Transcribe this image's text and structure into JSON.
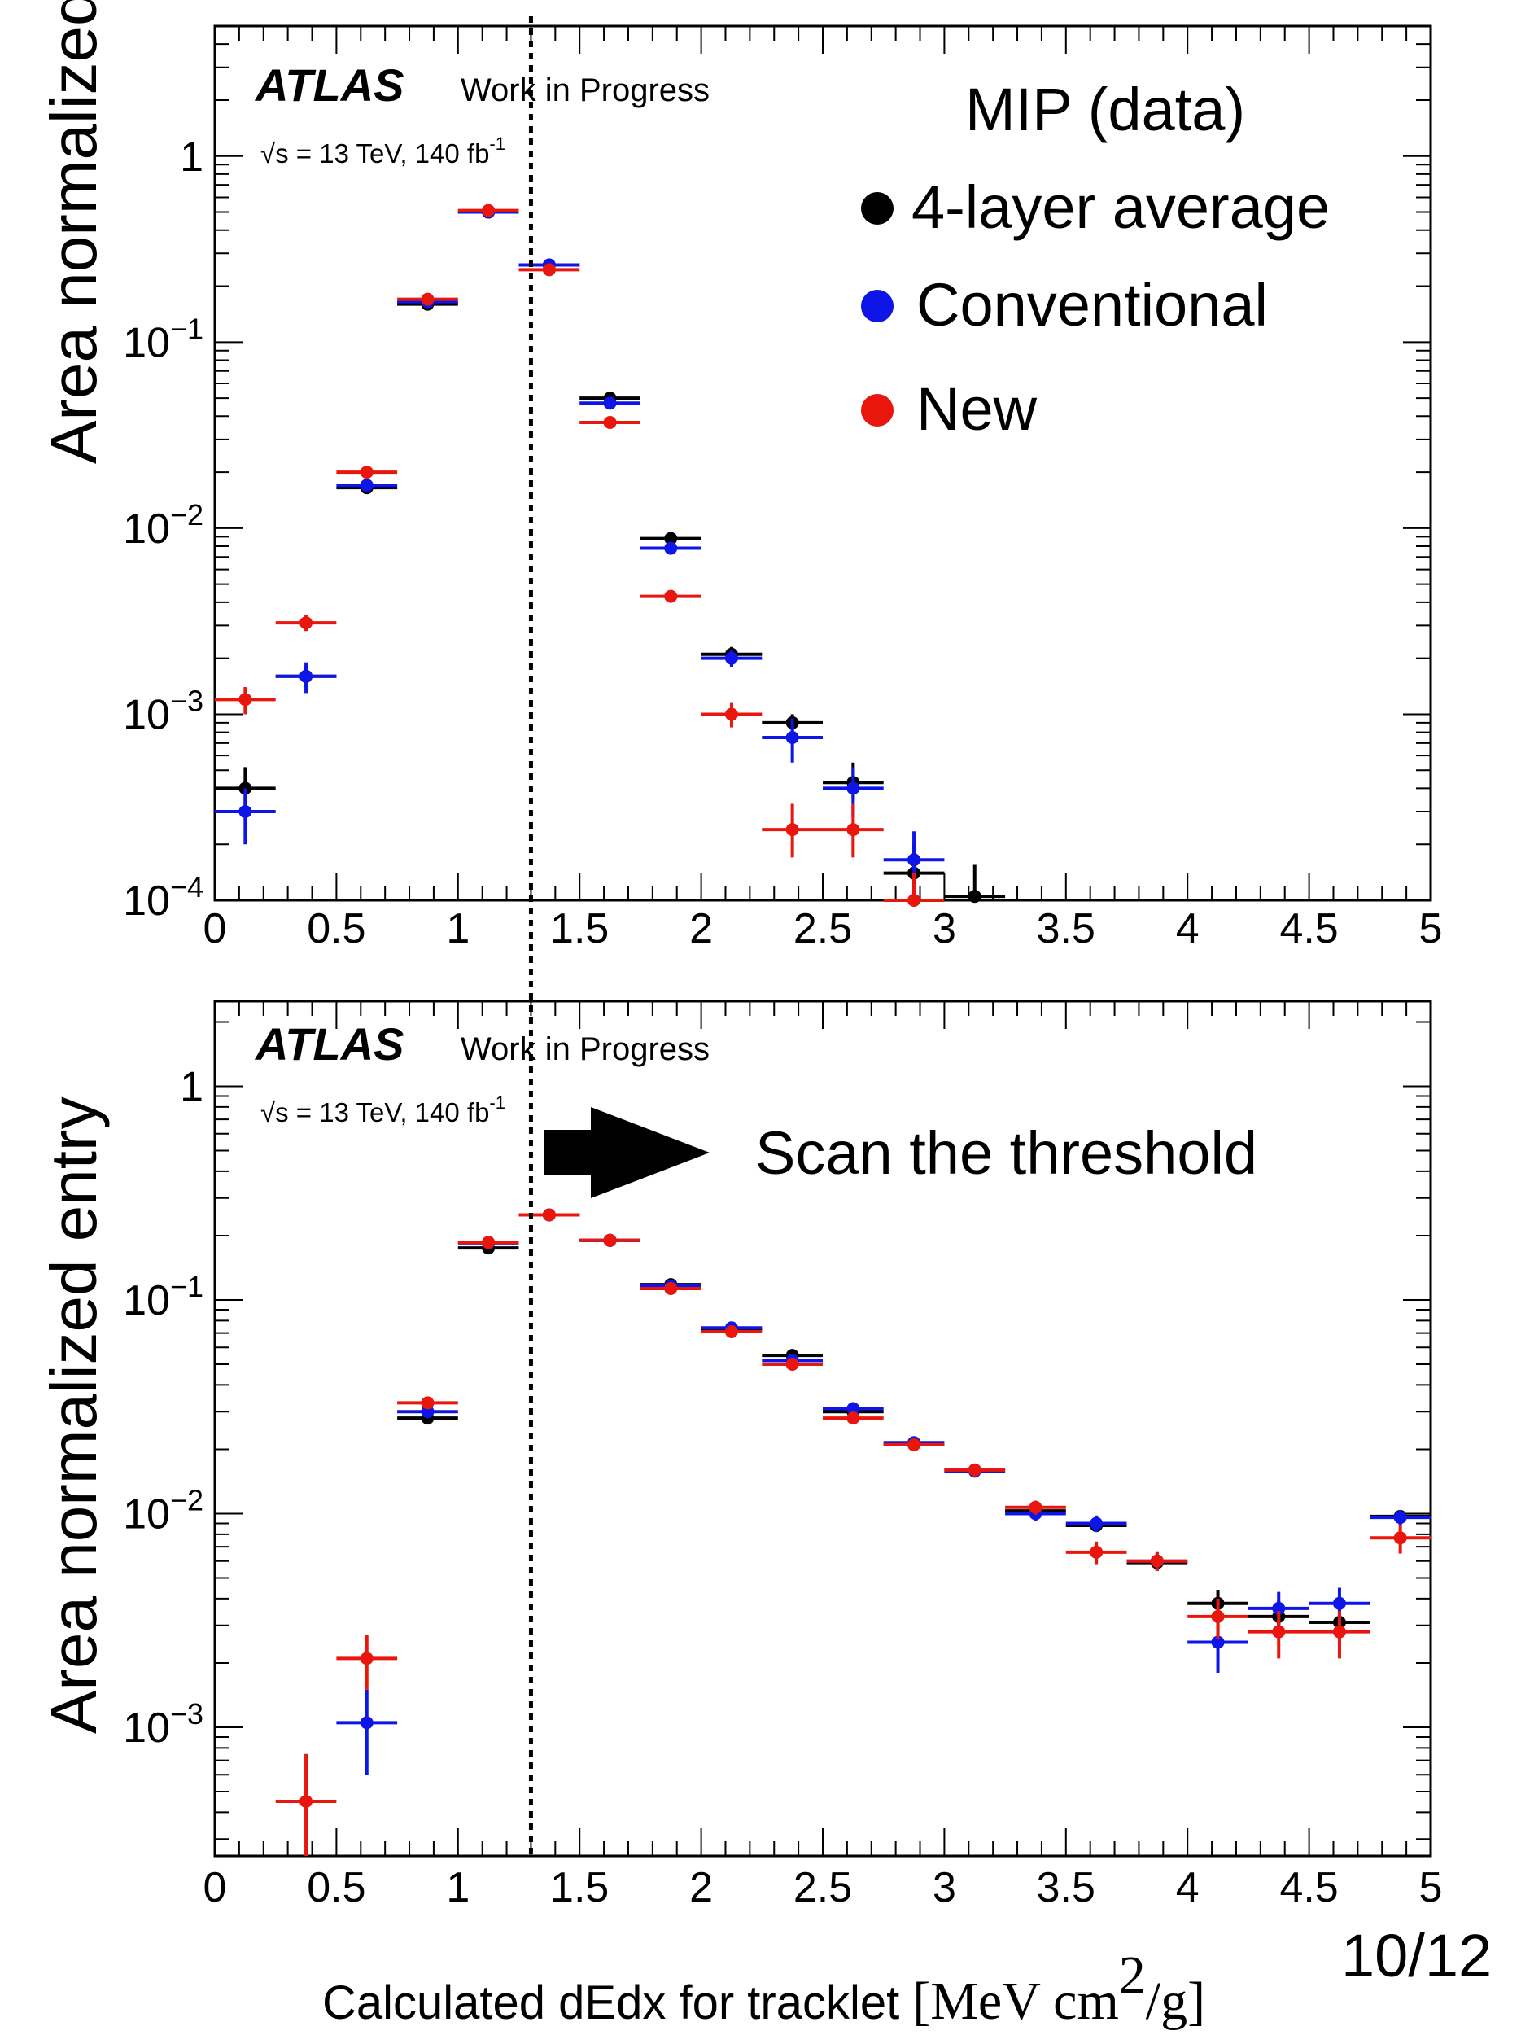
{
  "chart_data": [
    {
      "type": "scatter",
      "ylabel": "Area normalized entry",
      "yscale": "log",
      "ylim": [
        0.0001,
        5
      ],
      "xlim": [
        0,
        5
      ],
      "xticks": [
        "0",
        "0.5",
        "1",
        "1.5",
        "2",
        "2.5",
        "3",
        "3.5",
        "4",
        "4.5",
        "5"
      ],
      "yticks": [
        {
          "value": 1,
          "base": "1",
          "exp": ""
        },
        {
          "value": 0.1,
          "base": "10",
          "exp": "−1"
        },
        {
          "value": 0.01,
          "base": "10",
          "exp": "−2"
        },
        {
          "value": 0.001,
          "base": "10",
          "exp": "−3"
        },
        {
          "value": 0.0001,
          "base": "10",
          "exp": "−4"
        }
      ],
      "atlas_label": "ATLAS",
      "status_label": "Work in Progress",
      "energy_label": "√s = 13 TeV, 140 fb",
      "energy_label_sup": "-1",
      "legend_title": "MIP (data)",
      "legend_placement": "top-right",
      "threshold_x": 1.3,
      "series": [
        {
          "name": "4-layer average",
          "color": "#000000",
          "x": [
            0.125,
            0.375,
            0.625,
            0.875,
            1.125,
            1.375,
            1.625,
            1.875,
            2.125,
            2.375,
            2.625,
            2.875,
            3.125
          ],
          "y": [
            0.0004,
            0.0016,
            0.0165,
            0.16,
            0.5,
            0.26,
            0.05,
            0.0088,
            0.0021,
            0.0009,
            0.00043,
            0.00014,
            0.000105
          ],
          "err_lo": [
            8e-05,
            0.0002,
            0.0008,
            0.004,
            0.005,
            0.004,
            0.0015,
            0.0004,
            0.0002,
            0.0001,
            8e-05,
            4e-05,
            3e-05
          ],
          "err_hi": [
            0.00012,
            0.0002,
            0.0008,
            0.004,
            0.005,
            0.004,
            0.0015,
            0.0004,
            0.0002,
            0.0001,
            0.00012,
            6e-05,
            5e-05
          ]
        },
        {
          "name": "Conventional",
          "color": "#0d16e6",
          "x": [
            0.125,
            0.375,
            0.625,
            0.875,
            1.125,
            1.375,
            1.625,
            1.875,
            2.125,
            2.375,
            2.625,
            2.875
          ],
          "y": [
            0.0003,
            0.0016,
            0.017,
            0.165,
            0.5,
            0.26,
            0.047,
            0.0078,
            0.002,
            0.00075,
            0.0004,
            0.000165
          ],
          "err_lo": [
            0.0001,
            0.0003,
            0.0008,
            0.004,
            0.005,
            0.004,
            0.0015,
            0.0004,
            0.0002,
            0.0002,
            0.00012,
            5e-05
          ],
          "err_hi": [
            0.0001,
            0.0003,
            0.0008,
            0.004,
            0.005,
            0.004,
            0.0015,
            0.0004,
            0.0002,
            0.0002,
            0.00012,
            7e-05
          ]
        },
        {
          "name": "New",
          "color": "#e8160c",
          "x": [
            0.125,
            0.375,
            0.625,
            0.875,
            1.125,
            1.375,
            1.625,
            1.875,
            2.125,
            2.375,
            2.625,
            2.875
          ],
          "y": [
            0.0012,
            0.0031,
            0.02,
            0.17,
            0.51,
            0.245,
            0.037,
            0.0043,
            0.001,
            0.00024,
            0.00024,
            0.0001
          ],
          "err_lo": [
            0.0002,
            0.0003,
            0.0008,
            0.004,
            0.005,
            0.004,
            0.0012,
            0.0003,
            0.00015,
            7e-05,
            7e-05,
            3e-05
          ],
          "err_hi": [
            0.0002,
            0.0003,
            0.0008,
            0.004,
            0.005,
            0.004,
            0.0012,
            0.0003,
            0.00015,
            9e-05,
            9e-05,
            4e-05
          ]
        }
      ]
    },
    {
      "type": "scatter",
      "ylabel": "Area normalized entry",
      "xlabel": "Calculated dEdx for tracklet",
      "xlabel_unit": "[MeV cm",
      "xlabel_unit_sup": "2",
      "xlabel_unit_end": "/g]",
      "yscale": "log",
      "ylim": [
        0.00025,
        2.5
      ],
      "xlim": [
        0,
        5
      ],
      "xticks": [
        "0",
        "0.5",
        "1",
        "1.5",
        "2",
        "2.5",
        "3",
        "3.5",
        "4",
        "4.5",
        "5"
      ],
      "yticks": [
        {
          "value": 1,
          "base": "1",
          "exp": ""
        },
        {
          "value": 0.1,
          "base": "10",
          "exp": "−1"
        },
        {
          "value": 0.01,
          "base": "10",
          "exp": "−2"
        },
        {
          "value": 0.001,
          "base": "10",
          "exp": "−3"
        }
      ],
      "atlas_label": "ATLAS",
      "status_label": "Work in Progress",
      "energy_label": "√s = 13 TeV, 140 fb",
      "energy_label_sup": "-1",
      "annotation": "Scan the threshold",
      "threshold_x": 1.3,
      "series": [
        {
          "name": "4-layer average",
          "color": "#000000",
          "x": [
            0.875,
            1.125,
            1.375,
            1.625,
            1.875,
            2.125,
            2.375,
            2.625,
            2.875,
            3.125,
            3.375,
            3.625,
            3.875,
            4.125,
            4.375,
            4.625,
            4.875
          ],
          "y": [
            0.028,
            0.175,
            0.25,
            0.19,
            0.118,
            0.073,
            0.055,
            0.03,
            0.021,
            0.016,
            0.0103,
            0.0088,
            0.0059,
            0.0038,
            0.0033,
            0.0031,
            0.0097
          ],
          "err_lo": [
            0.001,
            0.002,
            0.003,
            0.003,
            0.002,
            0.002,
            0.0015,
            0.001,
            0.0008,
            0.0007,
            0.0006,
            0.0006,
            0.0005,
            0.0005,
            0.0005,
            0.0005,
            0.0007
          ],
          "err_hi": [
            0.001,
            0.002,
            0.003,
            0.003,
            0.002,
            0.002,
            0.0015,
            0.001,
            0.0008,
            0.0007,
            0.0006,
            0.0006,
            0.0005,
            0.0006,
            0.0006,
            0.0006,
            0.0007
          ]
        },
        {
          "name": "Conventional",
          "color": "#0d16e6",
          "x": [
            0.625,
            0.875,
            1.125,
            1.375,
            1.625,
            1.875,
            2.125,
            2.375,
            2.625,
            2.875,
            3.125,
            3.375,
            3.625,
            3.875,
            4.125,
            4.375,
            4.625,
            4.875
          ],
          "y": [
            0.00105,
            0.03,
            0.185,
            0.25,
            0.19,
            0.116,
            0.074,
            0.052,
            0.031,
            0.0215,
            0.0158,
            0.01,
            0.009,
            0.006,
            0.0025,
            0.0036,
            0.0038,
            0.0096
          ],
          "err_lo": [
            0.00045,
            0.001,
            0.002,
            0.003,
            0.003,
            0.002,
            0.002,
            0.0015,
            0.001,
            0.0008,
            0.0007,
            0.0008,
            0.0008,
            0.0006,
            0.0007,
            0.0007,
            0.0007,
            0.0008
          ],
          "err_hi": [
            0.00045,
            0.001,
            0.002,
            0.003,
            0.003,
            0.002,
            0.002,
            0.0015,
            0.001,
            0.0008,
            0.0007,
            0.0008,
            0.0008,
            0.0006,
            0.0007,
            0.0007,
            0.0007,
            0.0008
          ]
        },
        {
          "name": "New",
          "color": "#e8160c",
          "x": [
            0.375,
            0.625,
            0.875,
            1.125,
            1.375,
            1.625,
            1.875,
            2.125,
            2.375,
            2.625,
            2.875,
            3.125,
            3.375,
            3.625,
            3.875,
            4.125,
            4.375,
            4.625,
            4.875
          ],
          "y": [
            0.00045,
            0.0021,
            0.033,
            0.186,
            0.25,
            0.19,
            0.113,
            0.071,
            0.05,
            0.028,
            0.021,
            0.016,
            0.0107,
            0.0066,
            0.006,
            0.0033,
            0.0028,
            0.0028,
            0.0077
          ],
          "err_lo": [
            0.0002,
            0.0006,
            0.001,
            0.002,
            0.003,
            0.003,
            0.002,
            0.002,
            0.0015,
            0.001,
            0.0008,
            0.0007,
            0.0008,
            0.0008,
            0.0006,
            0.0007,
            0.0007,
            0.0007,
            0.0012
          ],
          "err_hi": [
            0.0003,
            0.0006,
            0.001,
            0.002,
            0.003,
            0.003,
            0.002,
            0.002,
            0.0015,
            0.001,
            0.0008,
            0.0007,
            0.0008,
            0.0008,
            0.0006,
            0.0007,
            0.0007,
            0.0007,
            0.0012
          ]
        }
      ]
    }
  ],
  "page_number": "10/12"
}
